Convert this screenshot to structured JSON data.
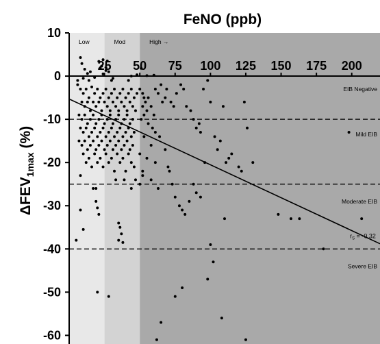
{
  "chart_data": {
    "type": "scatter",
    "title": "FeNO (ppb)",
    "xlabel": "FeNO (ppb)",
    "ylabel": "ΔFEV1max (%)",
    "ylabel_main": "ΔFEV",
    "ylabel_sub": "1max",
    "ylabel_unit": " (%)",
    "xlim": [
      0,
      220
    ],
    "ylim": [
      -62,
      10
    ],
    "x_ticks": [
      25,
      50,
      75,
      100,
      125,
      150,
      175,
      200
    ],
    "x_tick_labels": [
      "25",
      "50",
      "75",
      "100",
      "125",
      "150",
      "175",
      "200"
    ],
    "y_ticks": [
      10,
      0,
      -10,
      -20,
      -30,
      -40,
      -50,
      -60
    ],
    "y_tick_labels": [
      "10",
      "0",
      "-10",
      "-20",
      "-30",
      "-40",
      "-50",
      "-60"
    ],
    "zones": [
      {
        "label": "Low",
        "from": 0,
        "to": 25,
        "color": "#e8e8e8"
      },
      {
        "label": "Mod",
        "from": 25,
        "to": 50,
        "color": "#d3d3d3"
      },
      {
        "label": "High →",
        "from": 50,
        "to": 220,
        "color": "#a9a9a9"
      }
    ],
    "thresholds": [
      {
        "y": -10,
        "label": "Mild EIB"
      },
      {
        "y": -25,
        "label": "Moderate EIB"
      },
      {
        "y": -40,
        "label": "Severe EIB"
      }
    ],
    "band_labels": [
      {
        "text": "EIB Negative",
        "y": -3
      },
      {
        "text": "Mild EIB",
        "y": -13.5
      },
      {
        "text": "Moderate EIB",
        "y": -29
      },
      {
        "text": "Severe EIB",
        "y": -44
      }
    ],
    "regression": {
      "x1": 0,
      "y1": -5.3,
      "x2": 220,
      "y2": -38.8
    },
    "annotation": "rs = -0.32",
    "annotation_main": "r",
    "annotation_sub": "S",
    "annotation_rest": " = -0.32",
    "annotation_pos": {
      "x": 212,
      "y": -37.5
    },
    "points": [
      [
        8,
        4.3
      ],
      [
        9,
        2.9
      ],
      [
        11,
        1.6
      ],
      [
        13,
        0.6
      ],
      [
        21,
        3.4
      ],
      [
        24,
        3.8
      ],
      [
        27,
        3.5
      ],
      [
        23,
        2.3
      ],
      [
        26,
        2.0
      ],
      [
        22,
        1.8
      ],
      [
        26,
        1.3
      ],
      [
        28,
        1.0
      ],
      [
        24,
        0.5
      ],
      [
        10,
        -0.5
      ],
      [
        18,
        -0.3
      ],
      [
        31,
        -0.5
      ],
      [
        48,
        0.3
      ],
      [
        51,
        1.8
      ],
      [
        55,
        0.1
      ],
      [
        60,
        0.2
      ],
      [
        6,
        -2
      ],
      [
        8,
        -3
      ],
      [
        10,
        -4
      ],
      [
        12,
        -3
      ],
      [
        14,
        -5
      ],
      [
        16,
        -2.5
      ],
      [
        18,
        -4
      ],
      [
        20,
        -3
      ],
      [
        22,
        -5
      ],
      [
        24,
        -4
      ],
      [
        26,
        -3
      ],
      [
        28,
        -5
      ],
      [
        30,
        -4
      ],
      [
        32,
        -3
      ],
      [
        34,
        -5
      ],
      [
        36,
        -4
      ],
      [
        38,
        -3
      ],
      [
        40,
        -5
      ],
      [
        42,
        -4
      ],
      [
        44,
        -3
      ],
      [
        46,
        -5
      ],
      [
        48,
        -4
      ],
      [
        9,
        -6
      ],
      [
        11,
        -7
      ],
      [
        13,
        -6
      ],
      [
        15,
        -8
      ],
      [
        17,
        -6
      ],
      [
        19,
        -7
      ],
      [
        21,
        -6
      ],
      [
        23,
        -8
      ],
      [
        25,
        -6
      ],
      [
        27,
        -7
      ],
      [
        29,
        -8
      ],
      [
        31,
        -6
      ],
      [
        33,
        -7
      ],
      [
        35,
        -8
      ],
      [
        37,
        -6
      ],
      [
        39,
        -7
      ],
      [
        41,
        -8
      ],
      [
        43,
        -6
      ],
      [
        45,
        -7
      ],
      [
        47,
        -8
      ],
      [
        7,
        -9
      ],
      [
        9,
        -10
      ],
      [
        11,
        -9
      ],
      [
        13,
        -11
      ],
      [
        15,
        -10
      ],
      [
        17,
        -9
      ],
      [
        19,
        -11
      ],
      [
        21,
        -10
      ],
      [
        23,
        -9
      ],
      [
        25,
        -11
      ],
      [
        27,
        -10
      ],
      [
        29,
        -9
      ],
      [
        31,
        -11
      ],
      [
        33,
        -10
      ],
      [
        35,
        -9
      ],
      [
        37,
        -11
      ],
      [
        39,
        -10
      ],
      [
        41,
        -9
      ],
      [
        43,
        -11
      ],
      [
        45,
        -10
      ],
      [
        8,
        -12
      ],
      [
        10,
        -13
      ],
      [
        12,
        -12
      ],
      [
        14,
        -14
      ],
      [
        16,
        -13
      ],
      [
        18,
        -12
      ],
      [
        20,
        -14
      ],
      [
        22,
        -13
      ],
      [
        24,
        -12
      ],
      [
        26,
        -14
      ],
      [
        28,
        -13
      ],
      [
        30,
        -12
      ],
      [
        32,
        -14
      ],
      [
        34,
        -13
      ],
      [
        36,
        -12
      ],
      [
        38,
        -14
      ],
      [
        40,
        -13
      ],
      [
        42,
        -12
      ],
      [
        44,
        -14
      ],
      [
        46,
        -13
      ],
      [
        7,
        -15
      ],
      [
        9,
        -16
      ],
      [
        11,
        -15
      ],
      [
        13,
        -17
      ],
      [
        15,
        -16
      ],
      [
        17,
        -15
      ],
      [
        19,
        -17
      ],
      [
        21,
        -16
      ],
      [
        23,
        -15
      ],
      [
        25,
        -17
      ],
      [
        27,
        -16
      ],
      [
        29,
        -15
      ],
      [
        31,
        -17
      ],
      [
        33,
        -16
      ],
      [
        35,
        -15
      ],
      [
        37,
        -17
      ],
      [
        39,
        -16
      ],
      [
        41,
        -15
      ],
      [
        43,
        -17
      ],
      [
        45,
        -16
      ],
      [
        10,
        -18
      ],
      [
        14,
        -19
      ],
      [
        18,
        -18
      ],
      [
        22,
        -19
      ],
      [
        26,
        -18
      ],
      [
        30,
        -19
      ],
      [
        34,
        -18
      ],
      [
        38,
        -19
      ],
      [
        42,
        -18
      ],
      [
        12,
        -20
      ],
      [
        20,
        -20
      ],
      [
        28,
        -20
      ],
      [
        36,
        -20
      ],
      [
        44,
        -20
      ],
      [
        16,
        -21
      ],
      [
        24,
        -21
      ],
      [
        32,
        -22
      ],
      [
        40,
        -22
      ],
      [
        46,
        -21
      ],
      [
        8,
        -23
      ],
      [
        17,
        -26
      ],
      [
        19,
        -26
      ],
      [
        47,
        -24
      ],
      [
        44,
        -26
      ],
      [
        39,
        -24
      ],
      [
        33,
        -24
      ],
      [
        6,
        -1
      ],
      [
        14,
        -1
      ],
      [
        30,
        -1
      ],
      [
        42,
        -1
      ],
      [
        44,
        0
      ],
      [
        15,
        1
      ],
      [
        5,
        -38
      ],
      [
        8,
        -31
      ],
      [
        10,
        -35.5
      ],
      [
        19,
        -29
      ],
      [
        20,
        -30.5
      ],
      [
        21,
        -32
      ],
      [
        20,
        -50
      ],
      [
        28,
        -51
      ],
      [
        35,
        -34
      ],
      [
        36,
        -35
      ],
      [
        37,
        -36.5
      ],
      [
        35,
        -38
      ],
      [
        38,
        -38.5
      ],
      [
        50,
        -3
      ],
      [
        52,
        -4
      ],
      [
        53,
        -5
      ],
      [
        54,
        -6
      ],
      [
        56,
        -5
      ],
      [
        52,
        -7
      ],
      [
        55,
        -8
      ],
      [
        53,
        -9
      ],
      [
        58,
        -7
      ],
      [
        60,
        -9
      ],
      [
        51,
        -10
      ],
      [
        56,
        -11
      ],
      [
        59,
        -12
      ],
      [
        61,
        -13
      ],
      [
        53,
        -14
      ],
      [
        58,
        -16
      ],
      [
        64,
        -14
      ],
      [
        50,
        -18
      ],
      [
        55,
        -19
      ],
      [
        61,
        -20
      ],
      [
        52,
        -22
      ],
      [
        58,
        -24
      ],
      [
        63,
        -26
      ],
      [
        50,
        -25
      ],
      [
        52,
        -23
      ],
      [
        61,
        -3
      ],
      [
        63,
        -4
      ],
      [
        65,
        -2
      ],
      [
        66,
        -6
      ],
      [
        68,
        -5
      ],
      [
        69,
        -3
      ],
      [
        72,
        -6
      ],
      [
        74,
        -7
      ],
      [
        76,
        -4
      ],
      [
        79,
        -2
      ],
      [
        81,
        -3
      ],
      [
        83,
        -7
      ],
      [
        86,
        -8
      ],
      [
        88,
        -10
      ],
      [
        90,
        -12
      ],
      [
        92,
        -11
      ],
      [
        93,
        -13
      ],
      [
        95,
        -3
      ],
      [
        98,
        -1
      ],
      [
        100,
        -6
      ],
      [
        103,
        -14
      ],
      [
        105,
        -17
      ],
      [
        107,
        -15
      ],
      [
        109,
        -7
      ],
      [
        111,
        -20
      ],
      [
        113,
        -19
      ],
      [
        115,
        -18
      ],
      [
        120,
        -21
      ],
      [
        122,
        -22
      ],
      [
        124,
        -6
      ],
      [
        126,
        -12
      ],
      [
        130,
        -20
      ],
      [
        68,
        -17
      ],
      [
        70,
        -21
      ],
      [
        71,
        -22
      ],
      [
        73,
        -25
      ],
      [
        75,
        -28
      ],
      [
        78,
        -30
      ],
      [
        80,
        -31
      ],
      [
        82,
        -32
      ],
      [
        85,
        -29
      ],
      [
        88,
        -25
      ],
      [
        90,
        -27
      ],
      [
        93,
        -28
      ],
      [
        96,
        -20
      ],
      [
        100,
        -39
      ],
      [
        102,
        -43
      ],
      [
        98,
        -47
      ],
      [
        110,
        -33
      ],
      [
        108,
        -56
      ],
      [
        75,
        -51
      ],
      [
        80,
        -49
      ],
      [
        65,
        -57
      ],
      [
        62,
        -61
      ],
      [
        125,
        -61
      ],
      [
        148,
        -32
      ],
      [
        157,
        -33
      ],
      [
        163,
        -33
      ],
      [
        180,
        -40
      ],
      [
        198,
        -13
      ],
      [
        207,
        -33
      ]
    ]
  }
}
